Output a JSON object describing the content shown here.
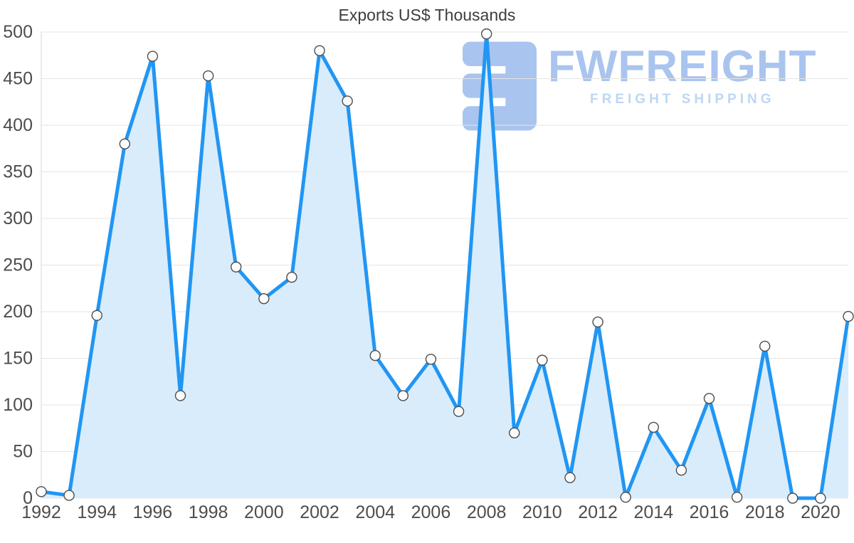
{
  "title": "Exports US$ Thousands",
  "watermark": {
    "brand": "FWFREIGHT",
    "tagline": "FREIGHT SHIPPING",
    "brand_color": "#a9c4ee",
    "tagline_color": "#bdd7f3",
    "logo_color": "#a9c4ee"
  },
  "chart_data": {
    "type": "line",
    "title": "Exports US$ Thousands",
    "xlabel": "",
    "ylabel": "",
    "x": [
      1992,
      1993,
      1994,
      1995,
      1996,
      1997,
      1998,
      1999,
      2000,
      2001,
      2002,
      2003,
      2004,
      2005,
      2006,
      2007,
      2008,
      2009,
      2010,
      2011,
      2012,
      2013,
      2014,
      2015,
      2016,
      2017,
      2018,
      2019,
      2020,
      2021
    ],
    "values": [
      7,
      3,
      196,
      380,
      474,
      110,
      453,
      248,
      214,
      237,
      480,
      426,
      153,
      110,
      149,
      93,
      498,
      70,
      148,
      22,
      189,
      1,
      76,
      30,
      107,
      1,
      163,
      0,
      0,
      195
    ],
    "ylim": [
      0,
      500
    ],
    "yticks": [
      0,
      50,
      100,
      150,
      200,
      250,
      300,
      350,
      400,
      450,
      500
    ],
    "xticks": [
      1992,
      1994,
      1996,
      1998,
      2000,
      2002,
      2004,
      2006,
      2008,
      2010,
      2012,
      2014,
      2016,
      2018,
      2020
    ],
    "grid": "horizontal",
    "legend": "none",
    "line_color": "#2196f3",
    "fill_color": "#d9ecfb",
    "marker_fill": "#fcfcfc",
    "marker_stroke": "#4d4d4d",
    "grid_color": "#e5e5e5",
    "axis_line_color": "#d6d6d6",
    "tick_color": "#4d4d4d"
  }
}
